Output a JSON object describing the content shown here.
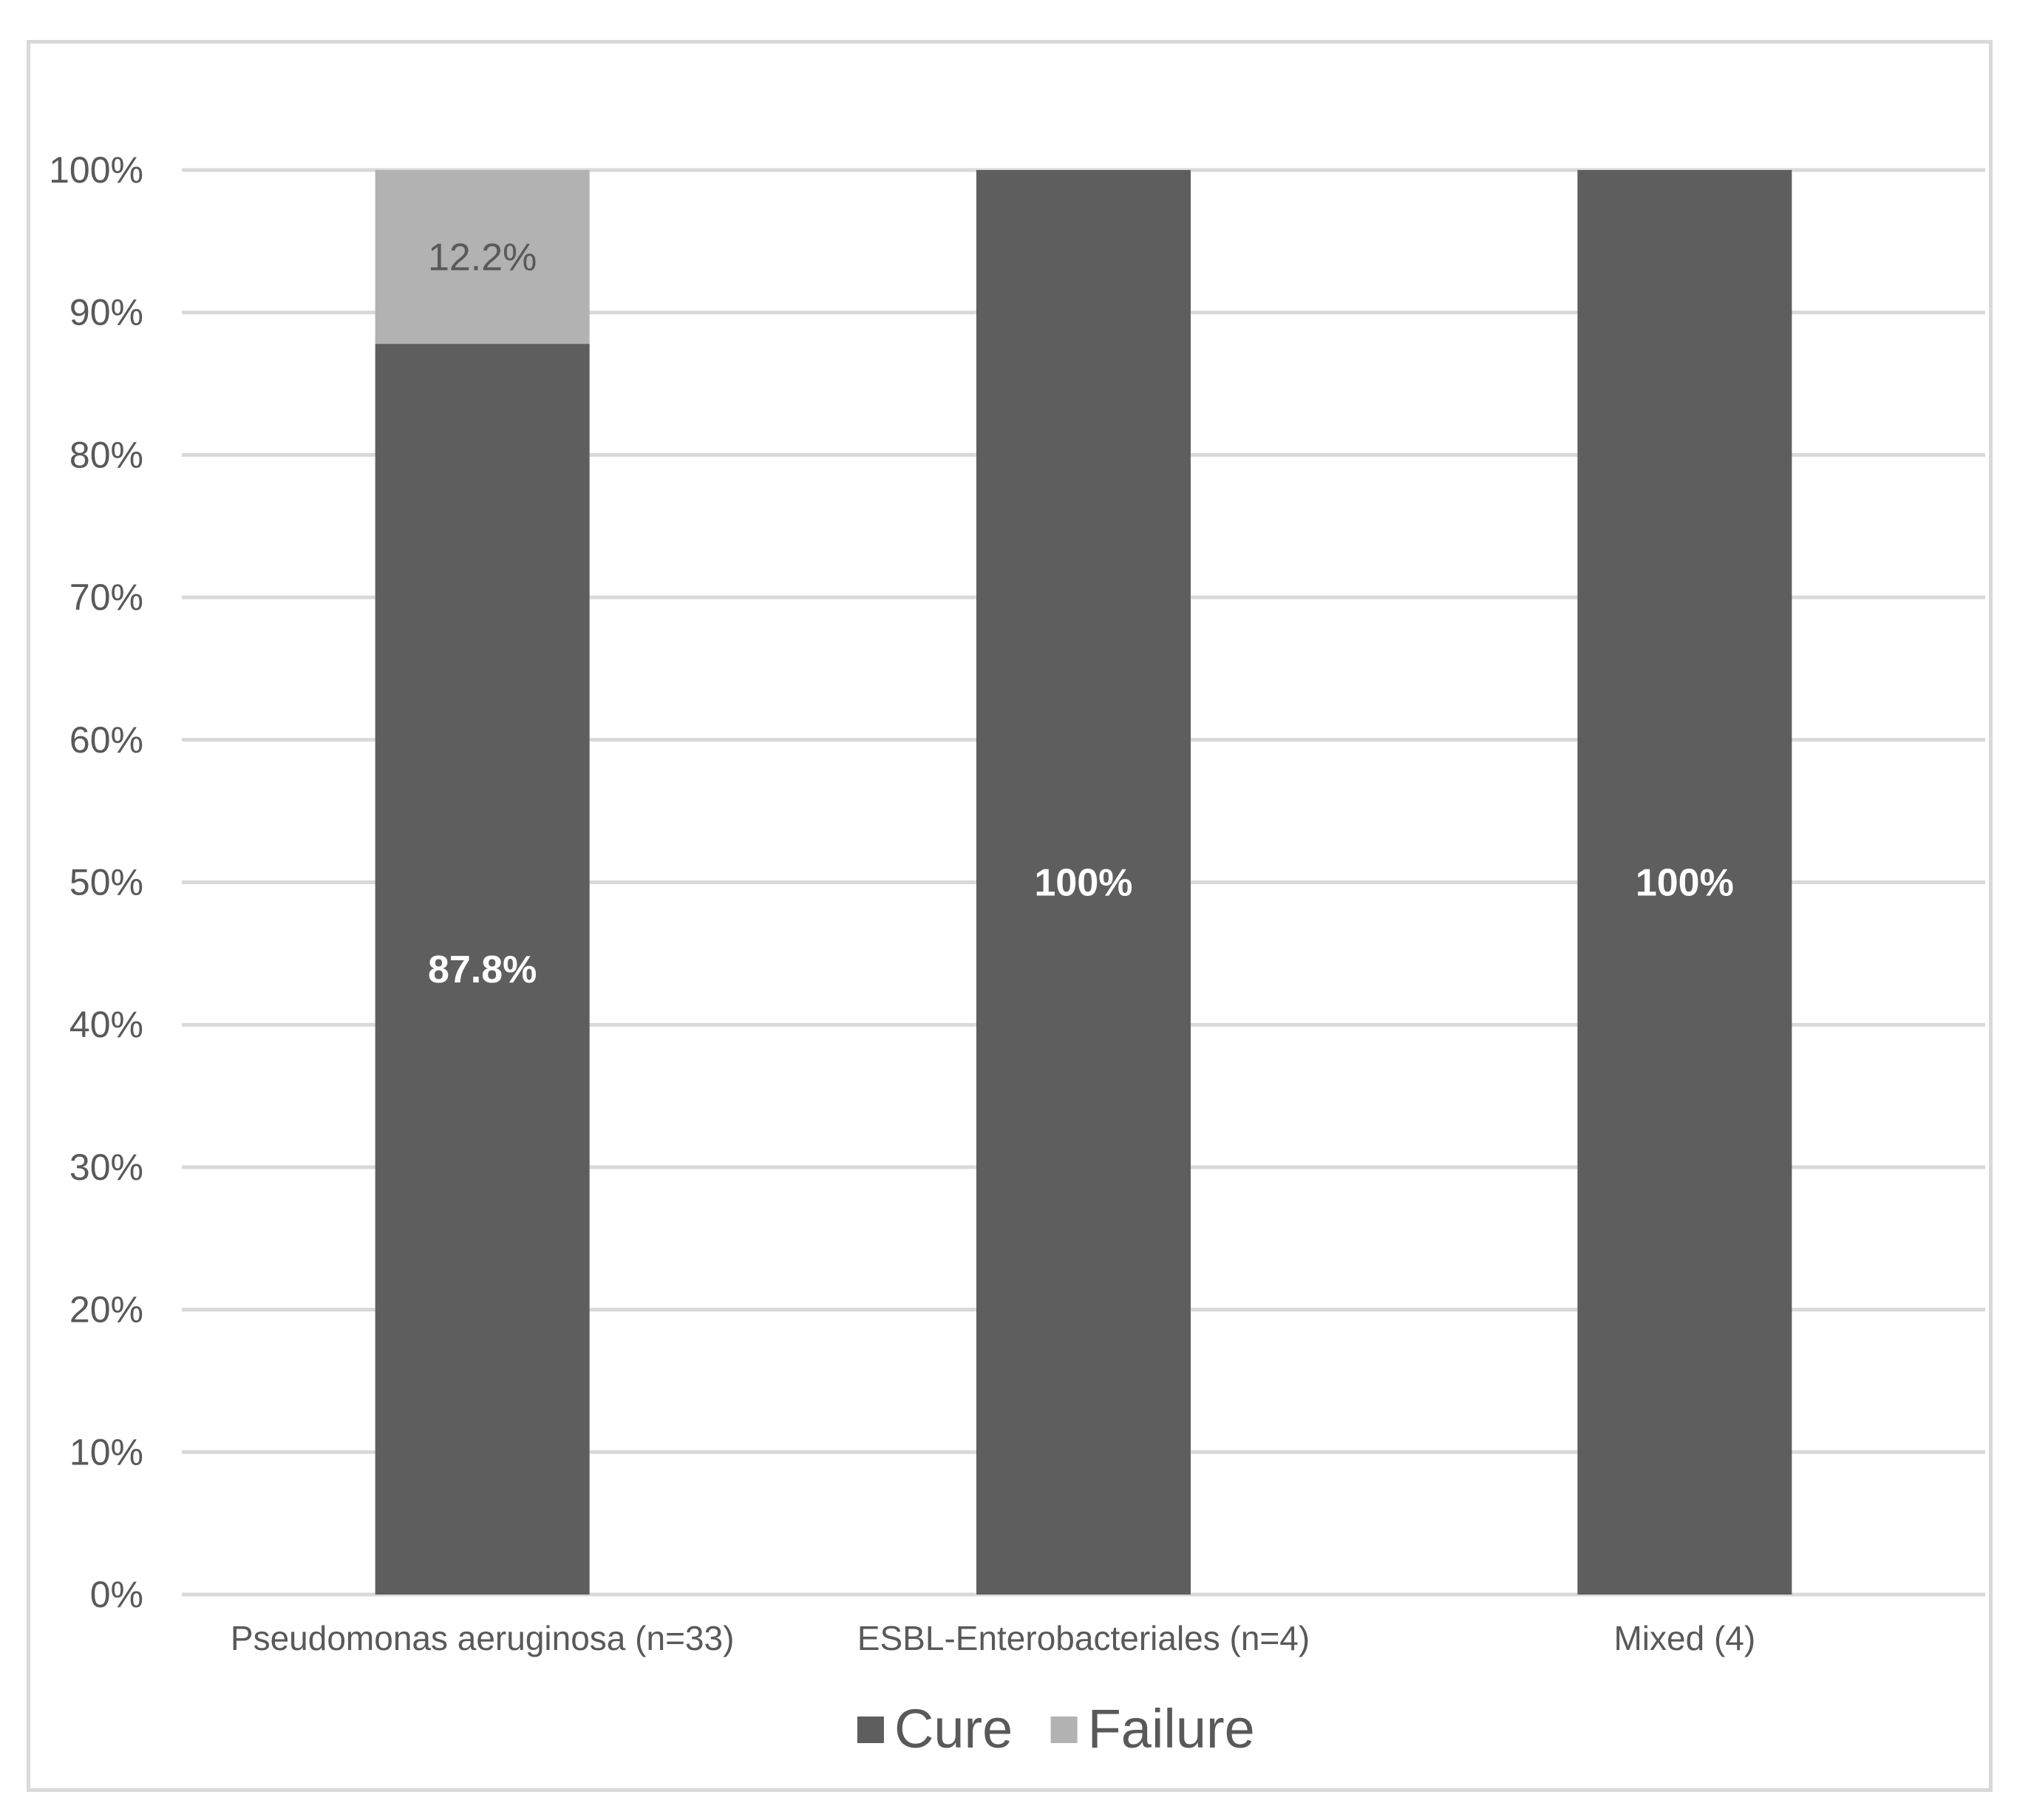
{
  "chart_data": {
    "type": "bar",
    "stacked": true,
    "categories": [
      "Pseudomonas aeruginosa (n=33)",
      "ESBL-Enterobacteriales (n=4)",
      "Mixed (4)"
    ],
    "series": [
      {
        "name": "Cure",
        "values": [
          87.8,
          100,
          100
        ],
        "labels": [
          "87.8%",
          "100%",
          "100%"
        ],
        "color": "#5e5e5e",
        "label_color": "#ffffff",
        "label_bold": true
      },
      {
        "name": "Failure",
        "values": [
          12.2,
          0,
          0
        ],
        "labels": [
          "12.2%",
          "",
          ""
        ],
        "color": "#b2b2b2",
        "label_color": "#595959",
        "label_bold": false
      }
    ],
    "y_ticks": [
      "0%",
      "10%",
      "20%",
      "30%",
      "40%",
      "50%",
      "60%",
      "70%",
      "80%",
      "90%",
      "100%"
    ],
    "ylim": [
      0,
      100
    ],
    "grid": true,
    "legend": "bottom",
    "title": "",
    "xlabel": "",
    "ylabel": ""
  },
  "colors": {
    "gridline": "#d9d9d9",
    "axis_text": "#595959",
    "frame": "#d9d9d9"
  }
}
